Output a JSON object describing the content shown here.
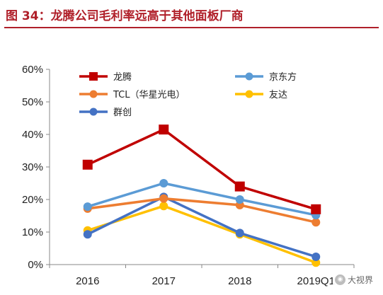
{
  "figure": {
    "title": "图 34：龙腾公司毛利率远高于其他面板厂商"
  },
  "watermark": {
    "text": "大视界"
  },
  "chart_data": {
    "type": "line",
    "title": "",
    "xlabel": "",
    "ylabel": "",
    "categories": [
      "2016",
      "2017",
      "2018",
      "2019Q1"
    ],
    "y_ticks": [
      "0%",
      "10%",
      "20%",
      "30%",
      "40%",
      "50%",
      "60%"
    ],
    "ylim": [
      0,
      60
    ],
    "grid": false,
    "legend_position": "top",
    "series": [
      {
        "name": "龙腾",
        "values": [
          30.7,
          41.5,
          24.0,
          17.0
        ],
        "color": "#c00000",
        "marker": "square"
      },
      {
        "name": "京东方",
        "values": [
          17.8,
          25.0,
          20.0,
          15.2
        ],
        "color": "#5b9bd5",
        "marker": "circle"
      },
      {
        "name": "TCL（华星光电）",
        "values": [
          17.2,
          20.3,
          18.3,
          13.0
        ],
        "color": "#ed7d31",
        "marker": "circle"
      },
      {
        "name": "友达",
        "values": [
          10.5,
          18.0,
          9.3,
          0.6
        ],
        "color": "#ffc000",
        "marker": "circle"
      },
      {
        "name": "群创",
        "values": [
          9.3,
          20.8,
          9.7,
          2.4
        ],
        "color": "#4472c4",
        "marker": "circle"
      }
    ]
  }
}
